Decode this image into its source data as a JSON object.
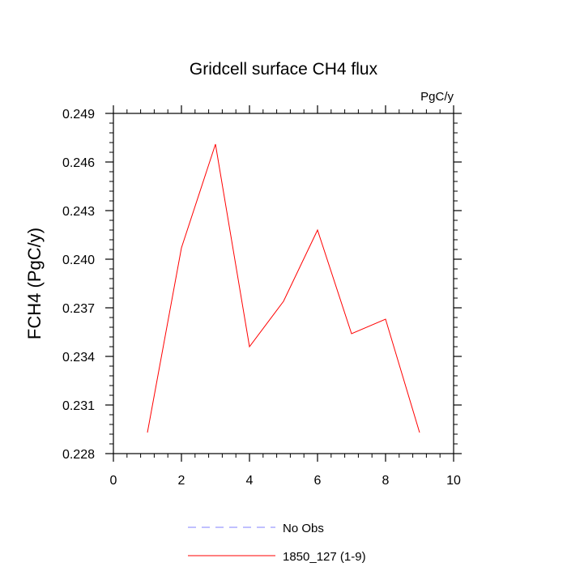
{
  "chart_data": {
    "type": "line",
    "title": "Gridcell surface CH4 flux",
    "units_label": "PgC/y",
    "ylabel": "FCH4  (PgC/y)",
    "xlabel": "",
    "xlim": [
      0,
      10
    ],
    "ylim": [
      0.228,
      0.249
    ],
    "x_ticks": [
      0,
      2,
      4,
      6,
      8,
      10
    ],
    "x_tick_labels": [
      "0",
      "2",
      "4",
      "6",
      "8",
      "10"
    ],
    "y_ticks": [
      0.228,
      0.231,
      0.234,
      0.237,
      0.24,
      0.243,
      0.246,
      0.249
    ],
    "y_tick_labels": [
      "0.228",
      "0.231",
      "0.234",
      "0.237",
      "0.240",
      "0.243",
      "0.246",
      "0.249"
    ],
    "grid": false,
    "legend_position": "bottom",
    "series": [
      {
        "name": "1850_127 (1-9)",
        "color": "#ff0000",
        "x": [
          1,
          2,
          3,
          4,
          5,
          6,
          7,
          8,
          9
        ],
        "y": [
          0.2293,
          0.2407,
          0.2471,
          0.2346,
          0.2374,
          0.2418,
          0.2354,
          0.2363,
          0.2293
        ]
      }
    ],
    "legend": [
      {
        "label": "No Obs",
        "color": "#8080ff",
        "dash": "dashed"
      },
      {
        "label": "1850_127 (1-9)",
        "color": "#ff0000",
        "dash": "solid"
      }
    ]
  }
}
